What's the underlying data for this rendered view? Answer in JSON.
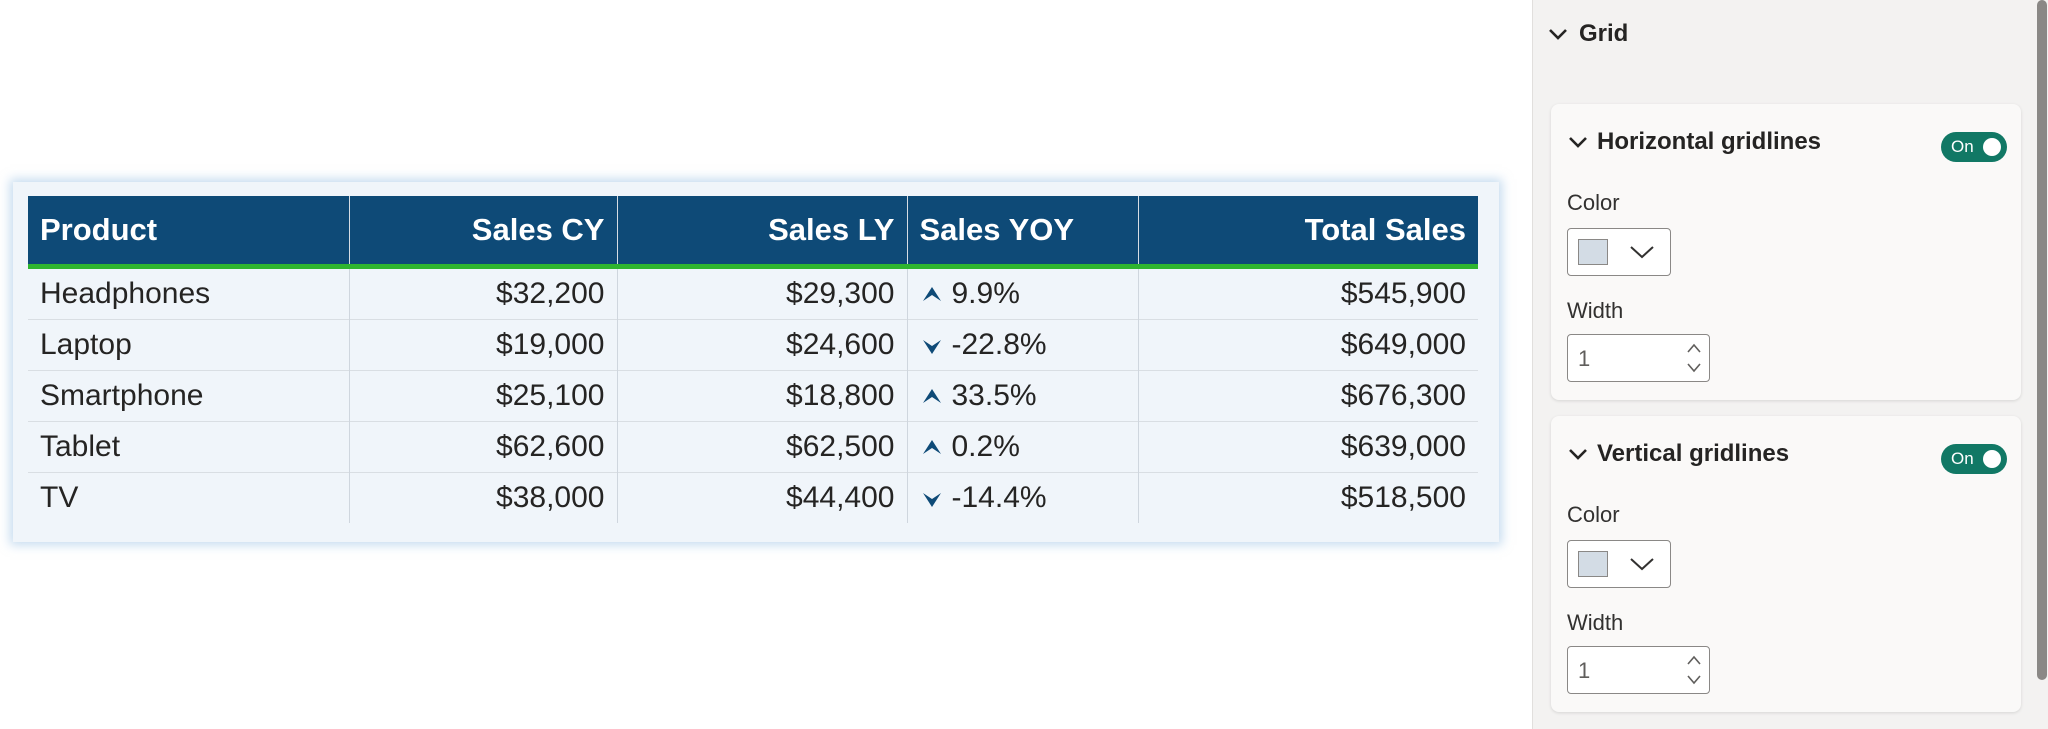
{
  "table": {
    "columns": [
      "Product",
      "Sales CY",
      "Sales LY",
      "Sales YOY",
      "Total Sales"
    ],
    "rows": [
      {
        "product": "Headphones",
        "cy": "$32,200",
        "ly": "$29,300",
        "yoy_dir": "up",
        "yoy": "9.9%",
        "total": "$545,900"
      },
      {
        "product": "Laptop",
        "cy": "$19,000",
        "ly": "$24,600",
        "yoy_dir": "down",
        "yoy": "-22.8%",
        "total": "$649,000"
      },
      {
        "product": "Smartphone",
        "cy": "$25,100",
        "ly": "$18,800",
        "yoy_dir": "up",
        "yoy": "33.5%",
        "total": "$676,300"
      },
      {
        "product": "Tablet",
        "cy": "$62,600",
        "ly": "$62,500",
        "yoy_dir": "up",
        "yoy": "0.2%",
        "total": "$639,000"
      },
      {
        "product": "TV",
        "cy": "$38,000",
        "ly": "$44,400",
        "yoy_dir": "down",
        "yoy": "-14.4%",
        "total": "$518,500"
      }
    ],
    "header_bg": "#0e4a77",
    "header_underline": "#2fb52f",
    "arrow_color": "#0e4a77"
  },
  "pane": {
    "section_title": "Grid",
    "horizontal": {
      "title": "Horizontal gridlines",
      "toggle": "On",
      "color_label": "Color",
      "color_value": "#d3dce5",
      "width_label": "Width",
      "width_value": "1"
    },
    "vertical": {
      "title": "Vertical gridlines",
      "toggle": "On",
      "color_label": "Color",
      "color_value": "#d3dce5",
      "width_label": "Width",
      "width_value": "1"
    },
    "toggle_color": "#117865"
  }
}
